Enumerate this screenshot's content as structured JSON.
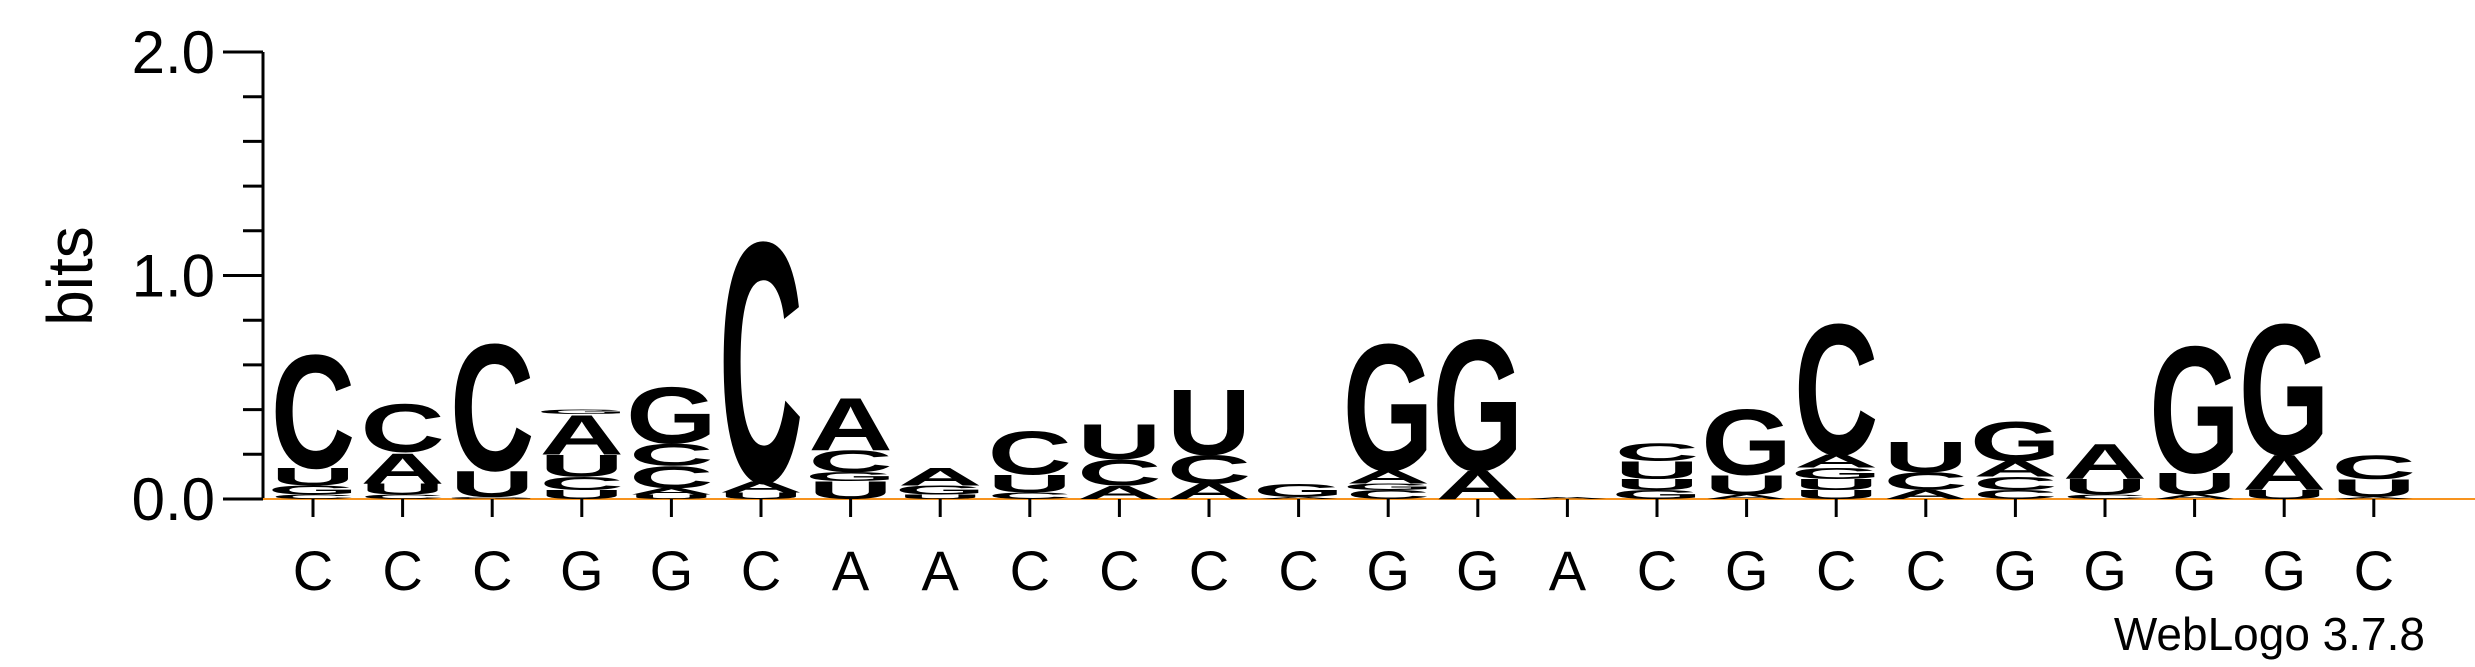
{
  "chart_data": {
    "type": "sequence-logo",
    "ylabel": "bits",
    "ylim": [
      0,
      2.0
    ],
    "y_ticks": [
      "0.0",
      "1.0",
      "2.0"
    ],
    "x_labels": [
      "C",
      "C",
      "C",
      "G",
      "G",
      "C",
      "A",
      "A",
      "C",
      "C",
      "C",
      "C",
      "G",
      "G",
      "A",
      "C",
      "G",
      "C",
      "C",
      "G",
      "G",
      "G",
      "G",
      "C"
    ],
    "colors": {
      "A": "#f7931e",
      "U": "#f7931e",
      "C": "#0000ff",
      "G": "#0000ff"
    },
    "columns": [
      [
        [
          "C",
          0.02
        ],
        [
          "G",
          0.04
        ],
        [
          "U",
          0.08
        ],
        [
          "C",
          0.52
        ]
      ],
      [
        [
          "C",
          0.02
        ],
        [
          "U",
          0.05
        ],
        [
          "A",
          0.14
        ],
        [
          "C",
          0.22
        ]
      ],
      [
        [
          "G",
          0.01
        ],
        [
          "U",
          0.12
        ],
        [
          "C",
          0.58
        ]
      ],
      [
        [
          "U",
          0.04
        ],
        [
          "C",
          0.06
        ],
        [
          "U",
          0.1
        ],
        [
          "A",
          0.18
        ],
        [
          "G",
          0.02
        ]
      ],
      [
        [
          "U",
          0.02
        ],
        [
          "A",
          0.03
        ],
        [
          "C",
          0.1
        ],
        [
          "C",
          0.1
        ],
        [
          "G",
          0.26
        ]
      ],
      [
        [
          "U",
          0.03
        ],
        [
          "A",
          0.05
        ],
        [
          "C",
          1.1
        ]
      ],
      [
        [
          "U",
          0.08
        ],
        [
          "G",
          0.04
        ],
        [
          "C",
          0.1
        ],
        [
          "A",
          0.24
        ]
      ],
      [
        [
          "U",
          0.02
        ],
        [
          "G",
          0.04
        ],
        [
          "A",
          0.08
        ]
      ],
      [
        [
          "C",
          0.03
        ],
        [
          "U",
          0.08
        ],
        [
          "C",
          0.2
        ]
      ],
      [
        [
          "A",
          0.06
        ],
        [
          "C",
          0.12
        ],
        [
          "U",
          0.16
        ]
      ],
      [
        [
          "A",
          0.07
        ],
        [
          "C",
          0.13
        ],
        [
          "U",
          0.3
        ]
      ],
      [
        [
          "A",
          0.01
        ],
        [
          "G",
          0.06
        ]
      ],
      [
        [
          "C",
          0.04
        ],
        [
          "G",
          0.03
        ],
        [
          "A",
          0.06
        ],
        [
          "G",
          0.58
        ]
      ],
      [
        [
          "A",
          0.13
        ],
        [
          "G",
          0.6
        ]
      ],
      [
        [
          "A",
          0.01
        ]
      ],
      [
        [
          "G",
          0.04
        ],
        [
          "U",
          0.05
        ],
        [
          "U",
          0.08
        ],
        [
          "C",
          0.08
        ]
      ],
      [
        [
          "A",
          0.02
        ],
        [
          "U",
          0.09
        ],
        [
          "G",
          0.3
        ]
      ],
      [
        [
          "U",
          0.04
        ],
        [
          "U",
          0.05
        ],
        [
          "G",
          0.05
        ],
        [
          "A",
          0.06
        ],
        [
          "C",
          0.6
        ]
      ],
      [
        [
          "A",
          0.04
        ],
        [
          "C",
          0.08
        ],
        [
          "U",
          0.14
        ]
      ],
      [
        [
          "C",
          0.04
        ],
        [
          "C",
          0.06
        ],
        [
          "A",
          0.07
        ],
        [
          "G",
          0.18
        ]
      ],
      [
        [
          "C",
          0.02
        ],
        [
          "U",
          0.07
        ],
        [
          "A",
          0.16
        ]
      ],
      [
        [
          "A",
          0.02
        ],
        [
          "U",
          0.1
        ],
        [
          "G",
          0.58
        ]
      ],
      [
        [
          "U",
          0.04
        ],
        [
          "A",
          0.16
        ],
        [
          "G",
          0.6
        ]
      ],
      [
        [
          "A",
          0.01
        ],
        [
          "U",
          0.08
        ],
        [
          "C",
          0.11
        ]
      ]
    ]
  },
  "credit": "WebLogo 3.7.8"
}
